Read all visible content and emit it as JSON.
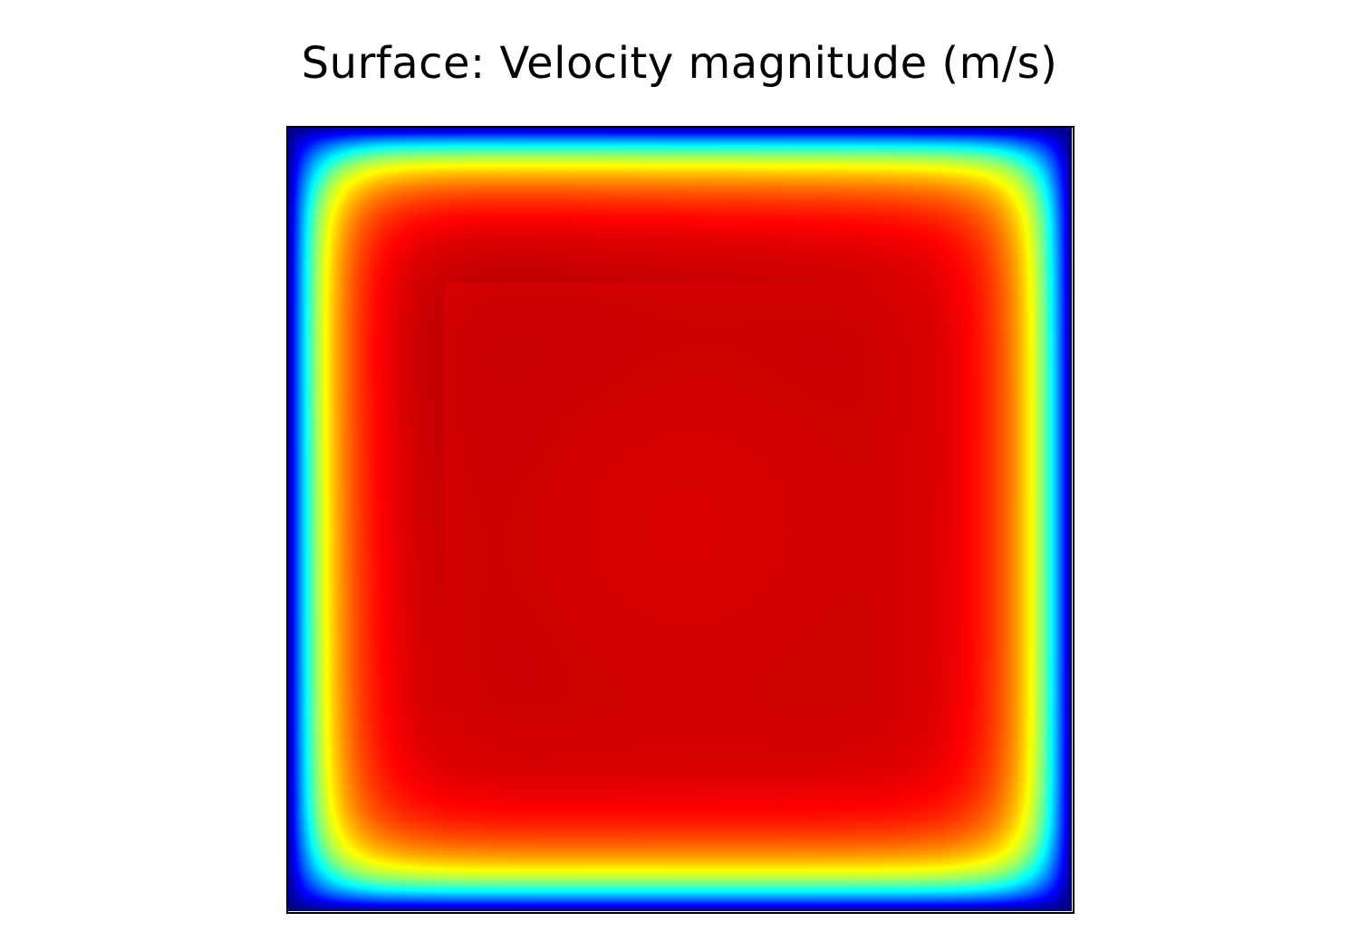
{
  "title": "Surface: Velocity magnitude (m/s)",
  "chart_data": {
    "type": "heatmap",
    "title": "Surface: Velocity magnitude (m/s)",
    "xlabel": "",
    "ylabel": "",
    "colormap": "jet",
    "grid": false,
    "legend": "none",
    "domain": "square cavity",
    "field": "velocity magnitude",
    "interior_level": 0.93,
    "wall_level": 0.0,
    "boundary_layer_fraction": 0.085,
    "corner_fraction": 0.13,
    "colors": {
      "low": "#00008f",
      "mid_low": "#00ffff",
      "mid": "#ffff00",
      "high": "#ff0000",
      "max": "#d00000"
    }
  }
}
